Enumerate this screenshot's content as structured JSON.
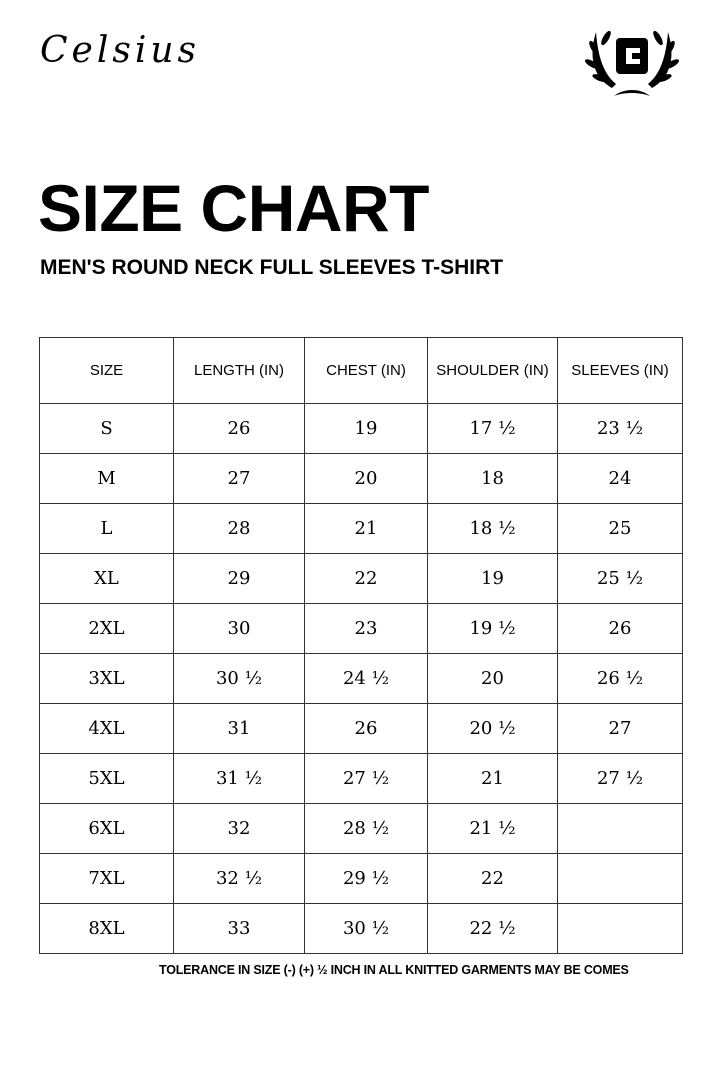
{
  "brand": "Celsius",
  "logo_letter": "C",
  "title": "SIZE CHART",
  "subtitle": "MEN'S ROUND NECK FULL SLEEVES T-SHIRT",
  "table": {
    "headers": [
      "SIZE",
      "LENGTH (IN)",
      "CHEST (IN)",
      "SHOULDER (IN)",
      "SLEEVES (IN)"
    ],
    "rows": [
      [
        "S",
        "26",
        "19",
        "17 ½",
        "23 ½"
      ],
      [
        "M",
        "27",
        "20",
        "18",
        "24"
      ],
      [
        "L",
        "28",
        "21",
        "18 ½",
        "25"
      ],
      [
        "XL",
        "29",
        "22",
        "19",
        "25 ½"
      ],
      [
        "2XL",
        "30",
        "23",
        "19 ½",
        "26"
      ],
      [
        "3XL",
        "30 ½",
        "24 ½",
        "20",
        "26 ½"
      ],
      [
        "4XL",
        "31",
        "26",
        "20 ½",
        "27"
      ],
      [
        "5XL",
        "31 ½",
        "27 ½",
        "21",
        "27 ½"
      ],
      [
        "6XL",
        "32",
        "28 ½",
        "21 ½",
        ""
      ],
      [
        "7XL",
        "32 ½",
        "29 ½",
        "22",
        ""
      ],
      [
        "8XL",
        "33",
        "30 ½",
        "22 ½",
        ""
      ]
    ]
  },
  "note": "TOLERANCE IN SIZE (-) (+) ½ INCH IN ALL KNITTED GARMENTS MAY BE COMES"
}
